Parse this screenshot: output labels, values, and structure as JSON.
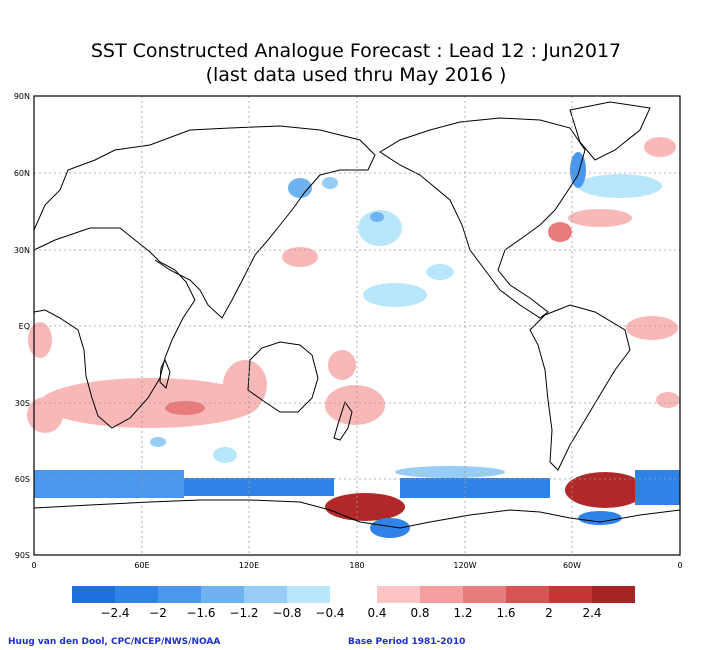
{
  "title": {
    "line1": "SST Constructed Analogue Forecast : Lead 12 : Jun2017",
    "line2": "(last data used thru May 2016 )"
  },
  "map": {
    "lat_labels": [
      "90N",
      "60N",
      "30N",
      "EQ",
      "30S",
      "60S",
      "90S"
    ],
    "lon_labels": [
      "0",
      "60E",
      "120E",
      "180",
      "120W",
      "60W",
      "0"
    ],
    "grid": "dotted"
  },
  "colorbar": {
    "ticks": [
      "−2.4",
      "−2",
      "−1.6",
      "−1.2",
      "−0.8",
      "−0.4",
      "0.4",
      "0.8",
      "1.2",
      "1.6",
      "2",
      "2.4"
    ],
    "cold_colors": [
      "#1f6fe0",
      "#2f83e8",
      "#4a98ee",
      "#6fb2f2",
      "#97ccf6",
      "#b8e6fa"
    ],
    "warm_colors": [
      "#ffc4c4",
      "#f4a0a0",
      "#e87c7c",
      "#d85454",
      "#c83434",
      "#a82424"
    ]
  },
  "credits": {
    "left": "Huug van den Dool, CPC/NCEP/NWS/NOAA",
    "right": "Base Period 1981-2010"
  }
}
